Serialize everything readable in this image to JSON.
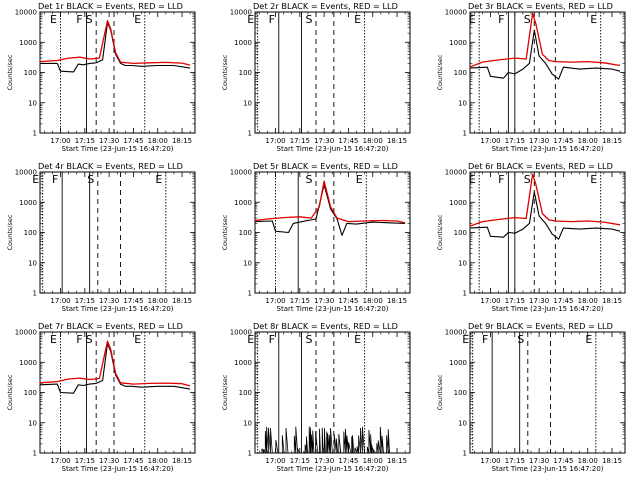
{
  "figure": {
    "background": "#ffffff",
    "ink": "#000000",
    "lld_color": "#e00000",
    "events_color": "#000000"
  },
  "common": {
    "ylabel": "Counts/sec",
    "xlabel": "Start Time (23-Jun-15 16:47:20)",
    "x_ticks": [
      "17:00",
      "17:15",
      "17:30",
      "17:45",
      "18:00",
      "18:15"
    ],
    "y_ticks": [
      "1",
      "10",
      "100",
      "1000",
      "10000"
    ],
    "markers": [
      "E",
      "F",
      "S",
      "E"
    ]
  },
  "chart_data": [
    {
      "type": "line",
      "title": "Det 1r BLACK = Events, RED = LLD",
      "xlabel": "Start Time (23-Jun-15 16:47:20)",
      "ylabel": "Counts/sec",
      "ylog": true,
      "ylim": [
        1,
        10000
      ],
      "xlim": [
        "16:47:20",
        "18:23:00"
      ],
      "has_data": true,
      "profile": "strong",
      "series": [
        {
          "name": "Events",
          "color": "#000000",
          "x": [
            "16:47",
            "16:58",
            "17:00",
            "17:08",
            "17:11",
            "17:14",
            "17:18",
            "17:22",
            "17:26",
            "17:29",
            "17:31",
            "17:34",
            "17:37",
            "17:40",
            "17:44",
            "17:50",
            "18:00",
            "18:10",
            "18:20"
          ],
          "y": [
            200,
            200,
            110,
            105,
            190,
            180,
            200,
            210,
            260,
            4500,
            2500,
            400,
            200,
            170,
            170,
            160,
            170,
            170,
            140
          ]
        },
        {
          "name": "LLD",
          "color": "#e00000",
          "x": [
            "16:47",
            "16:58",
            "17:05",
            "17:12",
            "17:18",
            "17:24",
            "17:29",
            "17:31",
            "17:34",
            "17:37",
            "17:45",
            "17:55",
            "18:05",
            "18:15",
            "18:20"
          ],
          "y": [
            230,
            250,
            300,
            320,
            280,
            300,
            5200,
            2800,
            450,
            220,
            200,
            210,
            215,
            205,
            175
          ]
        }
      ],
      "vlines": [
        {
          "label": "E",
          "x": "17:00",
          "style": "dotted"
        },
        {
          "label": "F",
          "x": "17:16",
          "style": "solid"
        },
        {
          "label": "S",
          "x": "17:22",
          "style": "dashed"
        },
        {
          "label": "",
          "x": "17:33",
          "style": "dashed"
        },
        {
          "label": "E",
          "x": "17:52",
          "style": "dotted"
        }
      ]
    },
    {
      "type": "line",
      "title": "Det 2r BLACK = Events, RED = LLD",
      "xlabel": "Start Time (23-Jun-15 16:47:20)",
      "ylabel": "Counts/sec",
      "ylog": true,
      "ylim": [
        1,
        10000
      ],
      "xlim": [
        "16:47:20",
        "18:23:00"
      ],
      "has_data": false,
      "profile": "none",
      "series": [],
      "vlines": [
        {
          "label": "E",
          "x": "16:49",
          "style": "dotted"
        },
        {
          "label": "F",
          "x": "17:02",
          "style": "solid"
        },
        {
          "label": "",
          "x": "17:16",
          "style": "solid"
        },
        {
          "label": "S",
          "x": "17:25",
          "style": "dashed"
        },
        {
          "label": "",
          "x": "17:36",
          "style": "dashed"
        },
        {
          "label": "E",
          "x": "17:55",
          "style": "dotted"
        }
      ]
    },
    {
      "type": "line",
      "title": "Det 3r BLACK = Events, RED = LLD",
      "xlabel": "Start Time (23-Jun-15 16:47:20)",
      "ylabel": "Counts/sec",
      "ylog": true,
      "ylim": [
        1,
        10000
      ],
      "xlim": [
        "16:47:20",
        "18:23:00"
      ],
      "has_data": true,
      "profile": "moderate",
      "series": [
        {
          "name": "Events",
          "color": "#000000",
          "x": [
            "16:47",
            "16:58",
            "17:00",
            "17:08",
            "17:11",
            "17:15",
            "17:20",
            "17:24",
            "17:27",
            "17:30",
            "17:34",
            "17:38",
            "17:42",
            "17:45",
            "17:55",
            "18:05",
            "18:15",
            "18:20"
          ],
          "y": [
            140,
            150,
            75,
            65,
            100,
            90,
            130,
            200,
            2500,
            350,
            200,
            90,
            60,
            150,
            130,
            140,
            130,
            110
          ]
        },
        {
          "name": "LLD",
          "color": "#e00000",
          "x": [
            "16:47",
            "16:55",
            "17:05",
            "17:15",
            "17:22",
            "17:26",
            "17:28",
            "17:32",
            "17:36",
            "17:40",
            "17:50",
            "18:00",
            "18:10",
            "18:20"
          ],
          "y": [
            150,
            220,
            260,
            300,
            280,
            9000,
            4000,
            400,
            250,
            230,
            220,
            230,
            210,
            170
          ]
        }
      ],
      "vlines": [
        {
          "label": "E",
          "x": "16:53",
          "style": "dotted"
        },
        {
          "label": "F",
          "x": "17:11",
          "style": "solid"
        },
        {
          "label": "",
          "x": "17:15",
          "style": "solid"
        },
        {
          "label": "S",
          "x": "17:27",
          "style": "dashed"
        },
        {
          "label": "",
          "x": "17:40",
          "style": "dashed"
        },
        {
          "label": "E",
          "x": "18:08",
          "style": "dotted"
        }
      ]
    },
    {
      "type": "line",
      "title": "Det 4r BLACK = Events, RED = LLD",
      "xlabel": "Start Time (23-Jun-15 16:47:20)",
      "ylabel": "Counts/sec",
      "ylog": true,
      "ylim": [
        1,
        10000
      ],
      "xlim": [
        "16:47:20",
        "18:23:00"
      ],
      "has_data": false,
      "profile": "none",
      "series": [],
      "vlines": [
        {
          "label": "E",
          "x": "16:49",
          "style": "dotted"
        },
        {
          "label": "F",
          "x": "17:01",
          "style": "solid"
        },
        {
          "label": "",
          "x": "17:18",
          "style": "solid"
        },
        {
          "label": "S",
          "x": "17:23",
          "style": "dashed"
        },
        {
          "label": "",
          "x": "17:37",
          "style": "dashed"
        },
        {
          "label": "E",
          "x": "18:05",
          "style": "dotted"
        }
      ]
    },
    {
      "type": "line",
      "title": "Det 5r BLACK = Events, RED = LLD",
      "xlabel": "Start Time (23-Jun-15 16:47:20)",
      "ylabel": "Counts/sec",
      "ylog": true,
      "ylim": [
        1,
        10000
      ],
      "xlim": [
        "16:47:20",
        "18:23:00"
      ],
      "has_data": true,
      "profile": "moderate",
      "series": [
        {
          "name": "Events",
          "color": "#000000",
          "x": [
            "16:47",
            "16:58",
            "17:00",
            "17:08",
            "17:11",
            "17:15",
            "17:20",
            "17:25",
            "17:30",
            "17:34",
            "17:38",
            "17:41",
            "17:44",
            "17:50",
            "18:00",
            "18:10",
            "18:20"
          ],
          "y": [
            230,
            240,
            110,
            100,
            200,
            220,
            250,
            280,
            3800,
            600,
            280,
            80,
            200,
            190,
            220,
            210,
            200
          ]
        },
        {
          "name": "LLD",
          "color": "#e00000",
          "x": [
            "16:47",
            "16:55",
            "17:05",
            "17:15",
            "17:22",
            "17:27",
            "17:30",
            "17:34",
            "17:38",
            "17:45",
            "17:55",
            "18:05",
            "18:15",
            "18:20"
          ],
          "y": [
            250,
            280,
            310,
            330,
            300,
            700,
            5000,
            700,
            300,
            230,
            240,
            250,
            240,
            210
          ]
        }
      ],
      "vlines": [
        {
          "label": "",
          "x": "17:00",
          "style": "dotted"
        },
        {
          "label": "",
          "x": "17:14",
          "style": "solid"
        },
        {
          "label": "S",
          "x": "17:25",
          "style": "dashed"
        },
        {
          "label": "",
          "x": "17:36",
          "style": "dashed"
        },
        {
          "label": "E",
          "x": "17:56",
          "style": "dotted"
        }
      ]
    },
    {
      "type": "line",
      "title": "Det 6r BLACK = Events, RED = LLD",
      "xlabel": "Start Time (23-Jun-15 16:47:20)",
      "ylabel": "Counts/sec",
      "ylog": true,
      "ylim": [
        1,
        10000
      ],
      "xlim": [
        "16:47:20",
        "18:23:00"
      ],
      "has_data": true,
      "profile": "moderate",
      "series": [
        {
          "name": "Events",
          "color": "#000000",
          "x": [
            "16:47",
            "16:58",
            "17:00",
            "17:08",
            "17:11",
            "17:15",
            "17:20",
            "17:24",
            "17:27",
            "17:30",
            "17:34",
            "17:38",
            "17:42",
            "17:45",
            "17:55",
            "18:05",
            "18:15",
            "18:20"
          ],
          "y": [
            140,
            150,
            75,
            70,
            100,
            95,
            130,
            200,
            2200,
            350,
            200,
            90,
            60,
            140,
            130,
            140,
            130,
            110
          ]
        },
        {
          "name": "LLD",
          "color": "#e00000",
          "x": [
            "16:47",
            "16:55",
            "17:05",
            "17:15",
            "17:22",
            "17:26",
            "17:28",
            "17:32",
            "17:36",
            "17:40",
            "17:50",
            "18:00",
            "18:10",
            "18:20"
          ],
          "y": [
            160,
            230,
            270,
            310,
            290,
            8500,
            3800,
            420,
            260,
            240,
            230,
            240,
            220,
            180
          ]
        }
      ],
      "vlines": [
        {
          "label": "E",
          "x": "16:53",
          "style": "dotted"
        },
        {
          "label": "F",
          "x": "17:11",
          "style": "solid"
        },
        {
          "label": "",
          "x": "17:15",
          "style": "solid"
        },
        {
          "label": "S",
          "x": "17:27",
          "style": "dashed"
        },
        {
          "label": "",
          "x": "17:40",
          "style": "dashed"
        },
        {
          "label": "E",
          "x": "18:08",
          "style": "dotted"
        }
      ]
    },
    {
      "type": "line",
      "title": "Det 7r BLACK = Events, RED = LLD",
      "xlabel": "Start Time (23-Jun-15 16:47:20)",
      "ylabel": "Counts/sec",
      "ylog": true,
      "ylim": [
        1,
        10000
      ],
      "xlim": [
        "16:47:20",
        "18:23:00"
      ],
      "has_data": true,
      "profile": "strong",
      "series": [
        {
          "name": "Events",
          "color": "#000000",
          "x": [
            "16:47",
            "16:58",
            "17:00",
            "17:08",
            "17:11",
            "17:14",
            "17:18",
            "17:22",
            "17:26",
            "17:29",
            "17:31",
            "17:34",
            "17:37",
            "17:40",
            "17:44",
            "17:50",
            "18:00",
            "18:10",
            "18:20"
          ],
          "y": [
            180,
            190,
            100,
            95,
            180,
            170,
            190,
            200,
            250,
            4200,
            2300,
            380,
            190,
            160,
            160,
            150,
            160,
            160,
            130
          ]
        },
        {
          "name": "LLD",
          "color": "#e00000",
          "x": [
            "16:47",
            "16:58",
            "17:05",
            "17:12",
            "17:18",
            "17:24",
            "17:29",
            "17:31",
            "17:34",
            "17:37",
            "17:45",
            "17:55",
            "18:05",
            "18:15",
            "18:20"
          ],
          "y": [
            210,
            230,
            280,
            300,
            270,
            290,
            5000,
            2700,
            430,
            210,
            190,
            200,
            205,
            195,
            165
          ]
        }
      ],
      "vlines": [
        {
          "label": "E",
          "x": "17:00",
          "style": "dotted"
        },
        {
          "label": "F",
          "x": "17:16",
          "style": "solid"
        },
        {
          "label": "S",
          "x": "17:22",
          "style": "dashed"
        },
        {
          "label": "",
          "x": "17:33",
          "style": "dashed"
        },
        {
          "label": "E",
          "x": "17:52",
          "style": "dotted"
        }
      ]
    },
    {
      "type": "line",
      "title": "Det 8r BLACK = Events, RED = LLD",
      "xlabel": "Start Time (23-Jun-15 16:47:20)",
      "ylabel": "Counts/sec",
      "ylog": true,
      "ylim": [
        1,
        10000
      ],
      "xlim": [
        "16:47:20",
        "18:23:00"
      ],
      "has_data": true,
      "profile": "noise",
      "series": [
        {
          "name": "Events",
          "color": "#000000",
          "x": [
            "16:47",
            "17:30"
          ],
          "y": [
            1,
            8
          ]
        }
      ],
      "vlines": [
        {
          "label": "E",
          "x": "16:49",
          "style": "dotted"
        },
        {
          "label": "F",
          "x": "17:02",
          "style": "solid"
        },
        {
          "label": "",
          "x": "17:16",
          "style": "solid"
        },
        {
          "label": "S",
          "x": "17:25",
          "style": "dashed"
        },
        {
          "label": "",
          "x": "17:36",
          "style": "dashed"
        },
        {
          "label": "E",
          "x": "17:55",
          "style": "dotted"
        }
      ]
    },
    {
      "type": "line",
      "title": "Det 9r BLACK = Events, RED = LLD",
      "xlabel": "Start Time (23-Jun-15 16:47:20)",
      "ylabel": "Counts/sec",
      "ylog": true,
      "ylim": [
        1,
        10000
      ],
      "xlim": [
        "16:47:20",
        "18:23:00"
      ],
      "has_data": false,
      "profile": "none",
      "series": [],
      "vlines": [
        {
          "label": "E",
          "x": "16:49",
          "style": "dotted"
        },
        {
          "label": "F",
          "x": "17:01",
          "style": "solid"
        },
        {
          "label": "",
          "x": "17:18",
          "style": "solid"
        },
        {
          "label": "S",
          "x": "17:23",
          "style": "dashed"
        },
        {
          "label": "",
          "x": "17:37",
          "style": "dashed"
        },
        {
          "label": "E",
          "x": "18:05",
          "style": "dotted"
        }
      ]
    }
  ]
}
